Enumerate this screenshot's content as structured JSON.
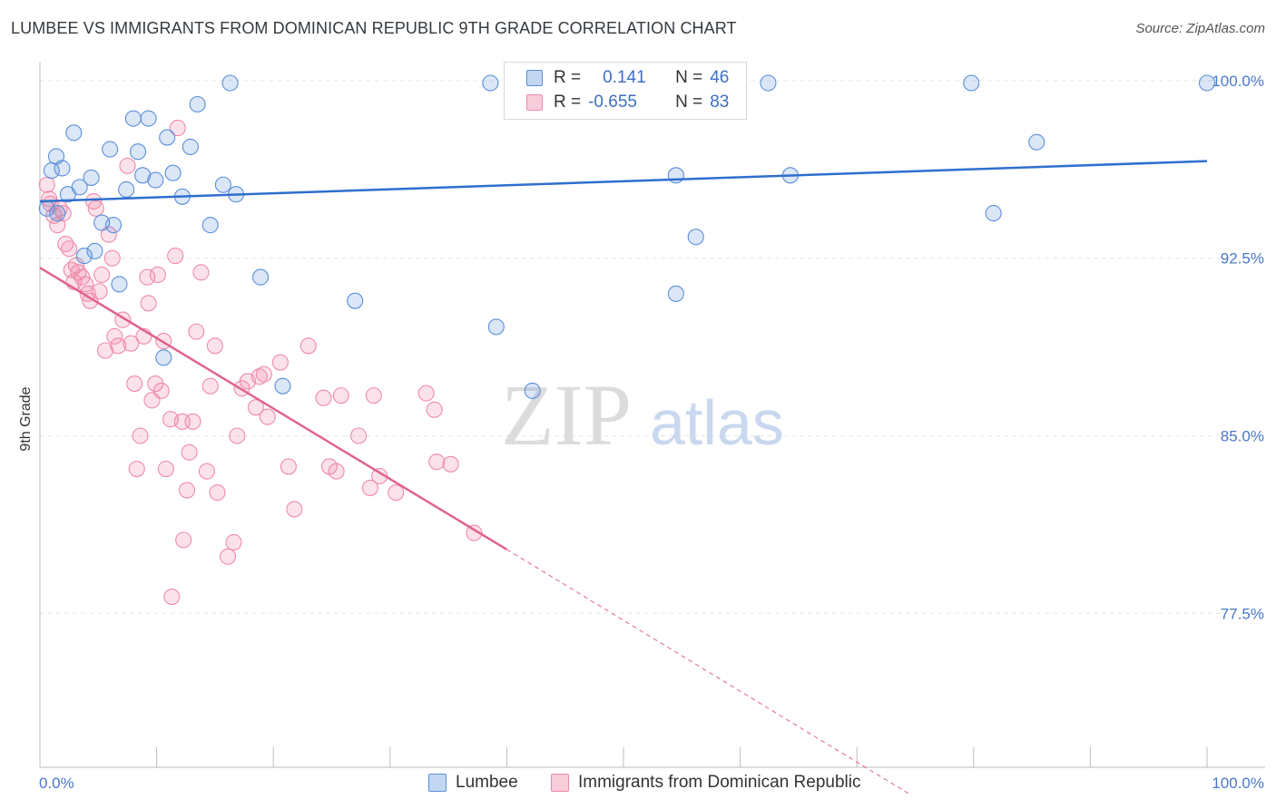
{
  "header": {
    "title": "LUMBEE VS IMMIGRANTS FROM DOMINICAN REPUBLIC 9TH GRADE CORRELATION CHART",
    "source": "Source: ZipAtlas.com"
  },
  "watermark": {
    "zip": "ZIP",
    "atlas": "atlas"
  },
  "legend": {
    "rows": [
      {
        "r_label": "R =",
        "r_value": "0.141",
        "n_label": "N =",
        "n_value": "46"
      },
      {
        "r_label": "R =",
        "r_value": "-0.655",
        "n_label": "N =",
        "n_value": "83"
      }
    ]
  },
  "bottom_legend": {
    "series_a": "Lumbee",
    "series_b": "Immigrants from Dominican Republic"
  },
  "chart_data": {
    "type": "scatter",
    "title": "LUMBEE VS IMMIGRANTS FROM DOMINICAN REPUBLIC 9TH GRADE CORRELATION CHART",
    "xlabel": "",
    "ylabel": "9th Grade",
    "xlim": [
      0,
      100
    ],
    "ylim": [
      71.0,
      100.8
    ],
    "x_tick_labels": [
      "0.0%",
      "100.0%"
    ],
    "y_ticks": [
      77.5,
      85.0,
      92.5,
      100.0
    ],
    "y_tick_labels": [
      "77.5%",
      "85.0%",
      "92.5%",
      "100.0%"
    ],
    "grid": true,
    "legend_position": "top-center",
    "colors": {
      "lumbee": "#5b8fd9",
      "lumbee_line": "#2f6fcf",
      "dominican": "#f08aaa",
      "dominican_line": "#e0628f"
    },
    "series": [
      {
        "name": "Lumbee",
        "r": 0.141,
        "n": 46,
        "trend": {
          "x": [
            0,
            100
          ],
          "y": [
            94.9,
            96.6
          ]
        },
        "points": [
          [
            0.6,
            94.6
          ],
          [
            1.0,
            96.2
          ],
          [
            1.4,
            96.8
          ],
          [
            1.9,
            96.3
          ],
          [
            2.4,
            95.2
          ],
          [
            2.9,
            97.8
          ],
          [
            3.4,
            95.5
          ],
          [
            3.8,
            92.6
          ],
          [
            4.4,
            95.9
          ],
          [
            4.7,
            92.8
          ],
          [
            5.3,
            94.0
          ],
          [
            6.0,
            97.1
          ],
          [
            6.3,
            93.9
          ],
          [
            6.8,
            91.4
          ],
          [
            7.4,
            95.4
          ],
          [
            8.0,
            98.4
          ],
          [
            8.4,
            97.0
          ],
          [
            8.8,
            96.0
          ],
          [
            9.3,
            98.4
          ],
          [
            9.9,
            95.8
          ],
          [
            10.6,
            88.3
          ],
          [
            10.9,
            97.6
          ],
          [
            11.4,
            96.1
          ],
          [
            12.2,
            95.1
          ],
          [
            12.9,
            97.2
          ],
          [
            13.5,
            99.0
          ],
          [
            14.6,
            93.9
          ],
          [
            15.7,
            95.6
          ],
          [
            16.3,
            99.9
          ],
          [
            16.8,
            95.2
          ],
          [
            18.9,
            91.7
          ],
          [
            20.8,
            87.1
          ],
          [
            27.0,
            90.7
          ],
          [
            38.6,
            99.9
          ],
          [
            39.1,
            89.6
          ],
          [
            42.2,
            86.9
          ],
          [
            54.5,
            96.0
          ],
          [
            54.5,
            91.0
          ],
          [
            56.2,
            93.4
          ],
          [
            62.4,
            99.9
          ],
          [
            64.3,
            96.0
          ],
          [
            79.8,
            99.9
          ],
          [
            81.7,
            94.4
          ],
          [
            85.4,
            97.4
          ],
          [
            100.0,
            99.9
          ],
          [
            1.5,
            94.4
          ]
        ]
      },
      {
        "name": "Immigrants from Dominican Republic",
        "r": -0.655,
        "n": 83,
        "trend": {
          "x": [
            0,
            40
          ],
          "y": [
            92.1,
            80.2
          ]
        },
        "trend_dashed": {
          "x": [
            40,
            74.4
          ],
          "y": [
            80.2,
            69.9
          ]
        },
        "points": [
          [
            0.6,
            95.6
          ],
          [
            0.9,
            94.8
          ],
          [
            1.2,
            94.3
          ],
          [
            1.5,
            93.9
          ],
          [
            1.7,
            94.6
          ],
          [
            2.0,
            94.4
          ],
          [
            2.2,
            93.1
          ],
          [
            2.5,
            92.9
          ],
          [
            2.7,
            92.0
          ],
          [
            2.9,
            91.5
          ],
          [
            3.1,
            92.2
          ],
          [
            3.3,
            91.9
          ],
          [
            3.6,
            91.7
          ],
          [
            3.9,
            91.4
          ],
          [
            4.1,
            91.0
          ],
          [
            4.3,
            90.7
          ],
          [
            4.6,
            94.9
          ],
          [
            4.8,
            94.6
          ],
          [
            5.1,
            91.1
          ],
          [
            5.3,
            91.8
          ],
          [
            5.6,
            88.6
          ],
          [
            5.9,
            93.5
          ],
          [
            6.2,
            92.5
          ],
          [
            6.4,
            89.2
          ],
          [
            6.7,
            88.8
          ],
          [
            7.1,
            89.9
          ],
          [
            7.5,
            96.4
          ],
          [
            7.8,
            88.9
          ],
          [
            8.1,
            87.2
          ],
          [
            8.3,
            83.6
          ],
          [
            8.6,
            85.0
          ],
          [
            8.9,
            89.2
          ],
          [
            9.2,
            91.7
          ],
          [
            9.3,
            90.6
          ],
          [
            9.6,
            86.5
          ],
          [
            9.9,
            87.2
          ],
          [
            10.1,
            91.8
          ],
          [
            10.4,
            86.9
          ],
          [
            10.6,
            89.0
          ],
          [
            10.8,
            83.6
          ],
          [
            11.2,
            85.7
          ],
          [
            11.3,
            78.2
          ],
          [
            11.6,
            92.6
          ],
          [
            11.8,
            98.0
          ],
          [
            12.2,
            85.6
          ],
          [
            12.3,
            80.6
          ],
          [
            12.6,
            82.7
          ],
          [
            12.8,
            84.3
          ],
          [
            13.1,
            85.6
          ],
          [
            13.4,
            89.4
          ],
          [
            13.8,
            91.9
          ],
          [
            14.3,
            83.5
          ],
          [
            14.6,
            87.1
          ],
          [
            15.0,
            88.8
          ],
          [
            15.2,
            82.6
          ],
          [
            16.1,
            79.9
          ],
          [
            16.6,
            80.5
          ],
          [
            16.9,
            85.0
          ],
          [
            17.3,
            87.0
          ],
          [
            17.8,
            87.3
          ],
          [
            18.5,
            86.2
          ],
          [
            18.8,
            87.5
          ],
          [
            19.2,
            87.6
          ],
          [
            19.5,
            85.8
          ],
          [
            20.6,
            88.1
          ],
          [
            21.3,
            83.7
          ],
          [
            21.8,
            81.9
          ],
          [
            23.0,
            88.8
          ],
          [
            24.3,
            86.6
          ],
          [
            24.8,
            83.7
          ],
          [
            25.4,
            83.5
          ],
          [
            25.8,
            86.7
          ],
          [
            27.3,
            85.0
          ],
          [
            28.3,
            82.8
          ],
          [
            28.6,
            86.7
          ],
          [
            29.1,
            83.3
          ],
          [
            30.5,
            82.6
          ],
          [
            33.1,
            86.8
          ],
          [
            33.8,
            86.1
          ],
          [
            34.0,
            83.9
          ],
          [
            35.2,
            83.8
          ],
          [
            37.2,
            80.9
          ],
          [
            0.8,
            95.0
          ]
        ]
      }
    ]
  }
}
